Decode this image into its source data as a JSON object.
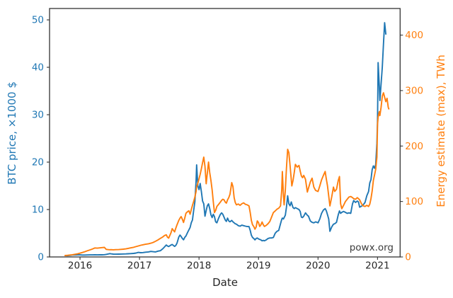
{
  "chart_data": {
    "type": "line",
    "title": "",
    "xlabel": "Date",
    "ylabel_left": "BTC price, ×1000 $",
    "ylabel_right": "Energy estimate (max), TWh",
    "watermark": "powx.org",
    "grid": false,
    "legend": null,
    "xlim": [
      2015.488,
      2021.38
    ],
    "ylim_left": [
      0,
      52.4
    ],
    "ylim_right": [
      0,
      448
    ],
    "xticks": [
      2016,
      2017,
      2018,
      2019,
      2020,
      2021
    ],
    "yticks_left": [
      0,
      10,
      20,
      30,
      40,
      50
    ],
    "yticks_right": [
      0,
      100,
      200,
      300,
      400
    ],
    "colors": {
      "btc": "#1f77b4",
      "energy": "#ff7f0e",
      "spine": "#333333",
      "tick_text": "#262626"
    },
    "x": [
      2015.75,
      2015.79,
      2015.83,
      2015.87,
      2015.92,
      2015.96,
      2016.0,
      2016.04,
      2016.08,
      2016.12,
      2016.17,
      2016.21,
      2016.25,
      2016.29,
      2016.33,
      2016.37,
      2016.41,
      2016.44,
      2016.48,
      2016.5,
      2016.52,
      2016.56,
      2016.6,
      2016.65,
      2016.69,
      2016.73,
      2016.77,
      2016.81,
      2016.85,
      2016.9,
      2016.94,
      2016.98,
      2017.02,
      2017.06,
      2017.1,
      2017.15,
      2017.19,
      2017.23,
      2017.27,
      2017.31,
      2017.35,
      2017.39,
      2017.42,
      2017.45,
      2017.47,
      2017.49,
      2017.53,
      2017.55,
      2017.57,
      2017.59,
      2017.61,
      2017.63,
      2017.66,
      2017.68,
      2017.7,
      2017.72,
      2017.74,
      2017.76,
      2017.78,
      2017.81,
      2017.83,
      2017.85,
      2017.87,
      2017.89,
      2017.91,
      2017.93,
      2017.95,
      2017.96,
      2017.98,
      2018.0,
      2018.02,
      2018.04,
      2018.06,
      2018.08,
      2018.1,
      2018.12,
      2018.14,
      2018.16,
      2018.18,
      2018.2,
      2018.22,
      2018.24,
      2018.26,
      2018.28,
      2018.3,
      2018.33,
      2018.36,
      2018.38,
      2018.4,
      2018.42,
      2018.44,
      2018.46,
      2018.48,
      2018.5,
      2018.52,
      2018.55,
      2018.57,
      2018.59,
      2018.61,
      2018.63,
      2018.66,
      2018.69,
      2018.72,
      2018.75,
      2018.78,
      2018.81,
      2018.84,
      2018.86,
      2018.88,
      2018.9,
      2018.92,
      2018.94,
      2018.96,
      2018.98,
      2019.0,
      2019.02,
      2019.04,
      2019.06,
      2019.08,
      2019.1,
      2019.13,
      2019.16,
      2019.19,
      2019.22,
      2019.25,
      2019.28,
      2019.31,
      2019.34,
      2019.37,
      2019.39,
      2019.4,
      2019.42,
      2019.43,
      2019.45,
      2019.47,
      2019.49,
      2019.51,
      2019.53,
      2019.55,
      2019.56,
      2019.58,
      2019.6,
      2019.62,
      2019.65,
      2019.68,
      2019.7,
      2019.72,
      2019.74,
      2019.76,
      2019.79,
      2019.82,
      2019.84,
      2019.87,
      2019.9,
      2019.93,
      2019.96,
      2020.0,
      2020.03,
      2020.06,
      2020.09,
      2020.12,
      2020.14,
      2020.16,
      2020.18,
      2020.2,
      2020.23,
      2020.26,
      2020.28,
      2020.31,
      2020.34,
      2020.36,
      2020.38,
      2020.4,
      2020.43,
      2020.46,
      2020.49,
      2020.52,
      2020.55,
      2020.58,
      2020.6,
      2020.63,
      2020.66,
      2020.68,
      2020.7,
      2020.73,
      2020.76,
      2020.79,
      2020.82,
      2020.85,
      2020.87,
      2020.89,
      2020.91,
      2020.93,
      2020.95,
      2020.97,
      2020.99,
      2021.0,
      2021.01,
      2021.03,
      2021.04,
      2021.06,
      2021.08,
      2021.1,
      2021.12,
      2021.14,
      2021.16,
      2021.18,
      2021.19
    ],
    "series": [
      {
        "name": "BTC price, ×1000 $",
        "axis": "left",
        "color": "#1f77b4",
        "values": [
          0.29,
          0.27,
          0.33,
          0.4,
          0.42,
          0.45,
          0.43,
          0.41,
          0.4,
          0.42,
          0.44,
          0.43,
          0.45,
          0.44,
          0.46,
          0.45,
          0.48,
          0.53,
          0.64,
          0.7,
          0.66,
          0.6,
          0.58,
          0.6,
          0.61,
          0.62,
          0.64,
          0.67,
          0.7,
          0.74,
          0.82,
          0.96,
          0.89,
          0.93,
          1.0,
          1.06,
          1.16,
          1.1,
          1.06,
          1.22,
          1.32,
          1.72,
          2.1,
          2.52,
          2.32,
          2.2,
          2.52,
          2.62,
          2.42,
          2.22,
          2.44,
          2.92,
          4.2,
          4.62,
          4.32,
          3.9,
          3.62,
          4.12,
          4.42,
          5.22,
          5.72,
          6.22,
          7.2,
          7.8,
          9.8,
          11.6,
          16.0,
          19.4,
          15.0,
          14.2,
          15.5,
          13.8,
          11.8,
          11.2,
          8.6,
          9.8,
          10.8,
          11.2,
          10.2,
          8.9,
          8.3,
          9.0,
          8.5,
          7.4,
          7.2,
          8.2,
          9.0,
          9.3,
          9.0,
          8.4,
          7.8,
          7.5,
          8.2,
          7.6,
          7.4,
          7.7,
          7.4,
          7.2,
          7.0,
          6.9,
          6.6,
          6.5,
          6.7,
          6.6,
          6.5,
          6.4,
          6.4,
          5.6,
          4.6,
          4.1,
          3.9,
          3.6,
          3.9,
          4.0,
          3.8,
          3.7,
          3.6,
          3.4,
          3.5,
          3.4,
          3.6,
          3.9,
          4.0,
          4.0,
          4.1,
          5.0,
          5.4,
          5.6,
          7.0,
          7.9,
          8.2,
          8.0,
          8.3,
          8.8,
          10.5,
          12.9,
          11.2,
          10.8,
          11.6,
          11.2,
          10.4,
          10.2,
          10.4,
          10.2,
          10.0,
          9.6,
          8.4,
          8.3,
          8.6,
          9.3,
          8.8,
          8.6,
          7.6,
          7.3,
          7.2,
          7.4,
          7.2,
          8.0,
          9.2,
          9.9,
          10.2,
          9.7,
          8.9,
          8.0,
          5.4,
          6.3,
          6.9,
          7.0,
          7.3,
          8.9,
          9.7,
          9.2,
          9.4,
          9.6,
          9.4,
          9.2,
          9.3,
          9.2,
          11.2,
          11.9,
          11.5,
          11.8,
          11.6,
          10.5,
          10.7,
          11.0,
          11.5,
          12.9,
          13.8,
          15.6,
          16.3,
          18.4,
          19.2,
          18.7,
          19.5,
          24.0,
          29.0,
          41.0,
          36.0,
          33.0,
          36.5,
          40.0,
          45.0,
          49.4,
          47.0,
          null,
          null,
          null
        ]
      },
      {
        "name": "Energy estimate (max), TWh",
        "axis": "right",
        "color": "#ff7f0e",
        "values": [
          2.5,
          2.9,
          3.4,
          4.0,
          4.8,
          5.6,
          6.8,
          8.0,
          9.4,
          11.0,
          12.8,
          14.4,
          16.2,
          15.8,
          16.4,
          16.9,
          17.2,
          13.6,
          13.2,
          13.0,
          13.1,
          12.9,
          13.1,
          13.3,
          13.6,
          14.0,
          14.6,
          15.4,
          16.3,
          17.4,
          18.6,
          19.8,
          21.0,
          22.0,
          22.9,
          23.8,
          24.8,
          26.2,
          28.3,
          30.8,
          33.4,
          36.0,
          38.6,
          40.0,
          35.6,
          34.0,
          44.0,
          51.0,
          48.0,
          45.2,
          52.0,
          58.0,
          66.0,
          70.0,
          72.8,
          68.0,
          62.2,
          70.0,
          78.8,
          82.0,
          83.2,
          77.0,
          85.0,
          93.0,
          100.0,
          108.0,
          118.0,
          126.0,
          133.0,
          141.0,
          149.0,
          159.0,
          170.0,
          180.0,
          163.0,
          132.0,
          151.0,
          171.0,
          152.0,
          138.0,
          121.0,
          100.0,
          80.0,
          84.0,
          91.0,
          95.0,
          99.0,
          102.0,
          104.0,
          103.0,
          99.0,
          97.0,
          103.0,
          107.0,
          113.0,
          134.0,
          127.0,
          107.0,
          98.0,
          94.0,
          95.5,
          93.0,
          96.0,
          97.5,
          95.0,
          94.0,
          92.0,
          80.0,
          66.0,
          58.0,
          55.0,
          50.0,
          54.0,
          65.0,
          62.0,
          55.0,
          58.0,
          63.0,
          58.0,
          55.0,
          57.0,
          60.0,
          64.0,
          72.0,
          80.0,
          83.0,
          86.0,
          88.0,
          92.0,
          120.0,
          154.0,
          110.0,
          94.0,
          120.0,
          160.0,
          194.0,
          188.0,
          165.0,
          140.0,
          128.0,
          138.0,
          152.0,
          167.0,
          162.0,
          165.0,
          155.0,
          146.0,
          143.0,
          147.0,
          140.0,
          117.0,
          124.0,
          135.0,
          142.0,
          126.0,
          120.0,
          118.0,
          128.0,
          139.0,
          147.0,
          154.0,
          140.0,
          128.0,
          110.0,
          92.0,
          108.0,
          126.0,
          118.0,
          122.0,
          138.0,
          145.0,
          96.0,
          87.0,
          93.0,
          100.0,
          104.0,
          108.0,
          109.0,
          107.0,
          105.0,
          104.0,
          107.0,
          105.0,
          103.0,
          96.0,
          92.0,
          91.0,
          93.0,
          91.0,
          95.0,
          105.0,
          119.0,
          138.0,
          148.0,
          158.0,
          180.0,
          240.0,
          252.0,
          262.0,
          255.0,
          270.0,
          290.0,
          296.0,
          288.0,
          280.0,
          286.0,
          270.0,
          267.0
        ]
      }
    ]
  }
}
